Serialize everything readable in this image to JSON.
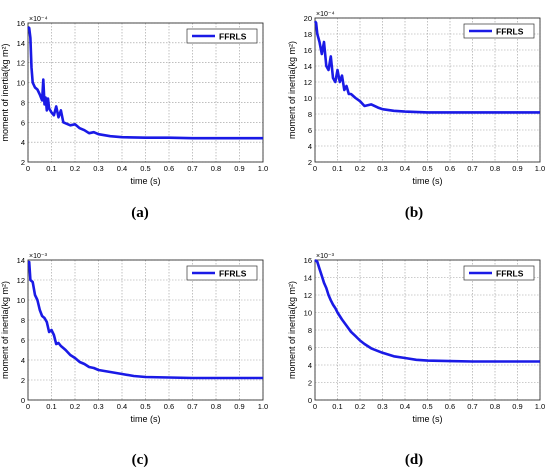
{
  "figure": {
    "captions": [
      "(a)",
      "(b)",
      "(c)",
      "(d)"
    ],
    "caption_letters": [
      "a",
      "b",
      "c",
      "d"
    ]
  },
  "chart_data": [
    {
      "id": "a",
      "type": "line",
      "xlabel": "time (s)",
      "ylabel": "moment of inertia(kg m²)",
      "y_exponent_label": "×10⁻⁴",
      "legend": "FFRLS",
      "legend_position": "top-right",
      "grid": true,
      "xlim": [
        0,
        1.0
      ],
      "ylim": [
        2,
        16
      ],
      "xticks": [
        "0",
        "0.1",
        "0.2",
        "0.3",
        "0.4",
        "0.5",
        "0.6",
        "0.7",
        "0.8",
        "0.9",
        "1.0"
      ],
      "yticks": [
        "2",
        "4",
        "6",
        "8",
        "10",
        "12",
        "14",
        "16"
      ],
      "series": [
        {
          "name": "FFRLS",
          "color": "#1a1ae6",
          "x": [
            0,
            0.005,
            0.01,
            0.015,
            0.02,
            0.03,
            0.04,
            0.05,
            0.06,
            0.065,
            0.07,
            0.075,
            0.08,
            0.085,
            0.09,
            0.1,
            0.11,
            0.12,
            0.13,
            0.14,
            0.15,
            0.16,
            0.18,
            0.2,
            0.22,
            0.24,
            0.26,
            0.28,
            0.3,
            0.35,
            0.4,
            0.5,
            0.6,
            0.7,
            0.8,
            0.9,
            1.0
          ],
          "y": [
            15.6,
            15.5,
            14.5,
            11.5,
            10.0,
            9.5,
            9.3,
            8.8,
            8.2,
            10.3,
            7.8,
            8.5,
            7.2,
            8.4,
            7.4,
            7.0,
            6.7,
            7.6,
            6.5,
            7.2,
            6.0,
            5.9,
            5.7,
            5.8,
            5.4,
            5.2,
            4.9,
            5.0,
            4.8,
            4.6,
            4.5,
            4.45,
            4.45,
            4.4,
            4.4,
            4.4,
            4.4
          ]
        }
      ]
    },
    {
      "id": "b",
      "type": "line",
      "xlabel": "time (s)",
      "ylabel": "moment of inertia(kg m²)",
      "y_exponent_label": "×10⁻⁴",
      "legend": "FFRLS",
      "legend_position": "top-right",
      "grid": true,
      "xlim": [
        0,
        1.0
      ],
      "ylim": [
        2,
        20
      ],
      "xticks": [
        "0",
        "0.1",
        "0.2",
        "0.3",
        "0.4",
        "0.5",
        "0.6",
        "0.7",
        "0.8",
        "0.9",
        "1.0"
      ],
      "yticks": [
        "2",
        "4",
        "6",
        "8",
        "10",
        "12",
        "14",
        "16",
        "18",
        "20"
      ],
      "series": [
        {
          "name": "FFRLS",
          "color": "#1a1ae6",
          "x": [
            0,
            0.005,
            0.01,
            0.02,
            0.03,
            0.04,
            0.05,
            0.06,
            0.07,
            0.08,
            0.09,
            0.1,
            0.11,
            0.12,
            0.13,
            0.14,
            0.15,
            0.16,
            0.18,
            0.2,
            0.22,
            0.25,
            0.28,
            0.3,
            0.35,
            0.4,
            0.5,
            0.6,
            0.7,
            0.8,
            0.9,
            1.0
          ],
          "y": [
            19.6,
            19.4,
            18.0,
            17.0,
            15.5,
            17.0,
            14.0,
            13.5,
            15.2,
            12.5,
            12.0,
            13.5,
            12.0,
            12.8,
            11.0,
            11.5,
            10.5,
            10.5,
            10.0,
            9.6,
            9.0,
            9.2,
            8.8,
            8.6,
            8.4,
            8.3,
            8.2,
            8.2,
            8.2,
            8.2,
            8.2,
            8.2
          ]
        }
      ]
    },
    {
      "id": "c",
      "type": "line",
      "xlabel": "time (s)",
      "ylabel": "moment of inertia(kg m²)",
      "y_exponent_label": "×10⁻³",
      "legend": "FFRLS",
      "legend_position": "top-right",
      "grid": true,
      "xlim": [
        0,
        1.0
      ],
      "ylim": [
        0,
        14
      ],
      "xticks": [
        "0",
        "0.1",
        "0.2",
        "0.3",
        "0.4",
        "0.5",
        "0.6",
        "0.7",
        "0.8",
        "0.9",
        "1.0"
      ],
      "yticks": [
        "0",
        "2",
        "4",
        "6",
        "8",
        "10",
        "12",
        "14"
      ],
      "series": [
        {
          "name": "FFRLS",
          "color": "#1a1ae6",
          "x": [
            0,
            0.005,
            0.01,
            0.02,
            0.03,
            0.04,
            0.05,
            0.06,
            0.07,
            0.08,
            0.09,
            0.1,
            0.11,
            0.12,
            0.13,
            0.14,
            0.15,
            0.16,
            0.18,
            0.2,
            0.22,
            0.24,
            0.26,
            0.28,
            0.3,
            0.35,
            0.4,
            0.45,
            0.5,
            0.6,
            0.7,
            0.8,
            0.9,
            1.0
          ],
          "y": [
            13.8,
            13.8,
            12.0,
            11.8,
            10.5,
            10.0,
            9.0,
            8.4,
            8.2,
            7.8,
            6.8,
            7.0,
            6.5,
            5.6,
            5.7,
            5.4,
            5.2,
            5.0,
            4.5,
            4.2,
            3.8,
            3.6,
            3.3,
            3.2,
            3.0,
            2.8,
            2.6,
            2.4,
            2.3,
            2.25,
            2.2,
            2.2,
            2.2,
            2.2
          ]
        }
      ]
    },
    {
      "id": "d",
      "type": "line",
      "xlabel": "time (s)",
      "ylabel": "moment of inertia(kg m²)",
      "y_exponent_label": "×10⁻³",
      "legend": "FFRLS",
      "legend_position": "top-right",
      "grid": true,
      "xlim": [
        0,
        1.0
      ],
      "ylim": [
        0,
        16
      ],
      "xticks": [
        "0",
        "0.1",
        "0.2",
        "0.3",
        "0.4",
        "0.5",
        "0.6",
        "0.7",
        "0.8",
        "0.9",
        "1.0"
      ],
      "yticks": [
        "0",
        "2",
        "4",
        "6",
        "8",
        "10",
        "12",
        "14",
        "16"
      ],
      "series": [
        {
          "name": "FFRLS",
          "color": "#1a1ae6",
          "x": [
            0,
            0.01,
            0.02,
            0.03,
            0.04,
            0.05,
            0.06,
            0.07,
            0.08,
            0.09,
            0.1,
            0.12,
            0.14,
            0.16,
            0.18,
            0.2,
            0.22,
            0.25,
            0.3,
            0.35,
            0.4,
            0.45,
            0.5,
            0.6,
            0.7,
            0.8,
            0.9,
            1.0
          ],
          "y": [
            16.0,
            15.8,
            15.0,
            14.2,
            13.4,
            12.8,
            12.0,
            11.4,
            10.9,
            10.5,
            10.0,
            9.2,
            8.5,
            7.8,
            7.3,
            6.8,
            6.4,
            5.9,
            5.4,
            5.0,
            4.8,
            4.6,
            4.5,
            4.45,
            4.4,
            4.4,
            4.4,
            4.4
          ]
        }
      ]
    }
  ]
}
